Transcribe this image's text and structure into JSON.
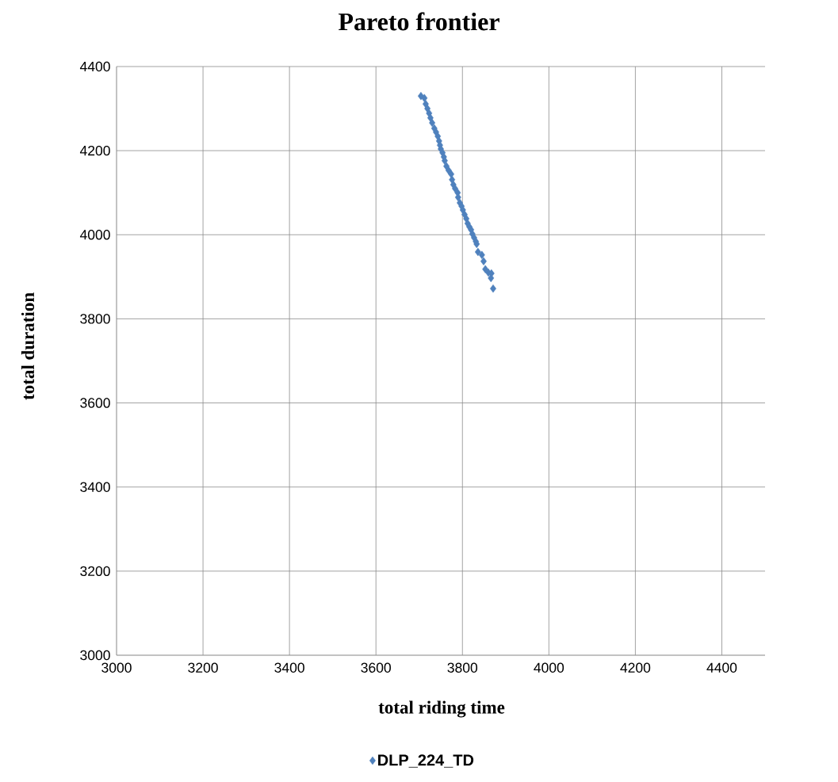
{
  "chart_data": {
    "type": "scatter",
    "title": "Pareto frontier",
    "xlabel": "total riding time",
    "ylabel": "total duration",
    "x": [
      3704,
      3712,
      3715,
      3719,
      3723,
      3726,
      3730,
      3735,
      3739,
      3743,
      3746,
      3748,
      3750,
      3754,
      3757,
      3759,
      3763,
      3768,
      3774,
      3776,
      3779,
      3783,
      3789,
      3790,
      3794,
      3798,
      3801,
      3805,
      3809,
      3812,
      3816,
      3820,
      3823,
      3827,
      3831,
      3833,
      3836,
      3845,
      3849,
      3853,
      3860,
      3867,
      3866,
      3871
    ],
    "series": [
      {
        "name": "DLP_224_TD",
        "color": "#4f81bd",
        "values": [
          4330,
          4325,
          4311,
          4300,
          4289,
          4278,
          4266,
          4253,
          4244,
          4234,
          4223,
          4213,
          4204,
          4195,
          4185,
          4176,
          4163,
          4153,
          4144,
          4131,
          4119,
          4110,
          4100,
          4089,
          4076,
          4068,
          4059,
          4048,
          4038,
          4027,
          4019,
          4012,
          4002,
          3993,
          3984,
          3978,
          3959,
          3952,
          3937,
          3918,
          3910,
          3908,
          3897,
          3872
        ]
      }
    ],
    "xlim": [
      3000,
      4500
    ],
    "ylim": [
      3000,
      4400
    ],
    "xticks": [
      3000,
      3200,
      3400,
      3600,
      3800,
      4000,
      4200,
      4400
    ],
    "yticks": [
      3000,
      3200,
      3400,
      3600,
      3800,
      4000,
      4200,
      4400
    ],
    "grid": true,
    "legend": "bottom",
    "marker": "diamond"
  }
}
